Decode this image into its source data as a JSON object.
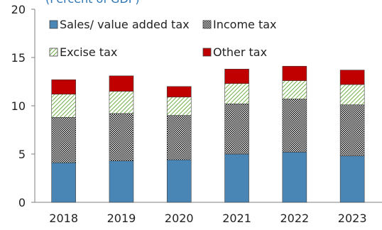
{
  "chart_data": {
    "type": "bar",
    "stacked": true,
    "subtitle": "(Percent of GDP)",
    "categories": [
      "2018",
      "2019",
      "2020",
      "2021",
      "2022",
      "2023"
    ],
    "series": [
      {
        "name": "Sales/ value added tax",
        "values": [
          4.1,
          4.3,
          4.4,
          5.0,
          5.2,
          4.8
        ],
        "color": "#4a86b5",
        "pattern": "solid"
      },
      {
        "name": "Income tax",
        "values": [
          4.7,
          4.9,
          4.6,
          5.2,
          5.5,
          5.3
        ],
        "color": "#000000",
        "pattern": "checker"
      },
      {
        "name": "Excise tax",
        "values": [
          2.4,
          2.3,
          1.9,
          2.1,
          1.9,
          2.1
        ],
        "color": "#70ad47",
        "pattern": "diagonal"
      },
      {
        "name": "Other tax",
        "values": [
          1.5,
          1.6,
          1.1,
          1.5,
          1.5,
          1.5
        ],
        "color": "#c00000",
        "pattern": "solid"
      }
    ],
    "ylim": [
      0,
      20
    ],
    "yticks": [
      0,
      5,
      10,
      15,
      20
    ],
    "xlabel": "",
    "ylabel": "",
    "grid": false,
    "legend_position": "top-left"
  }
}
